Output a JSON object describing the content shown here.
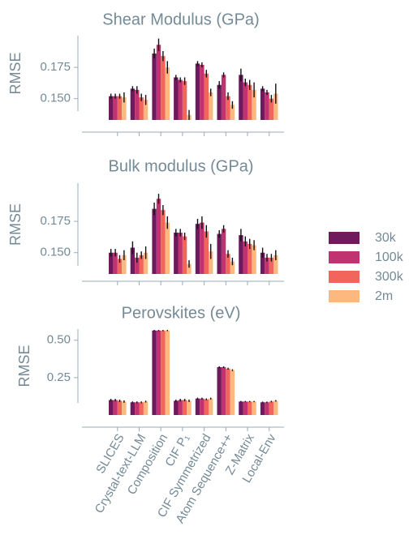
{
  "colors": {
    "text": "#748a96",
    "axis": "#9aabb4",
    "errorbar": "#111111",
    "series": [
      "#6e1a5c",
      "#c13370",
      "#f2655c",
      "#fdb880"
    ]
  },
  "legend": {
    "placement": "right"
  },
  "chart_data": [
    {
      "type": "bar",
      "title": "Shear Modulus (GPa)",
      "ylabel": "RMSE",
      "ylim": [
        0.133,
        0.199
      ],
      "yticks": [
        0.15,
        0.175
      ],
      "ytick_labels": [
        "0.150",
        "0.175"
      ],
      "categories": [
        "SLICES",
        "Crystal-text-LLM",
        "Composition",
        "CIF P1",
        "CIF Symmetrized",
        "Atom Sequence++",
        "Z-Matrix",
        "Local-Env"
      ],
      "series": [
        {
          "name": "30k",
          "values": [
            0.152,
            0.158,
            0.186,
            0.167,
            0.178,
            0.161,
            0.169,
            0.158
          ],
          "errors": [
            0.002,
            0.002,
            0.004,
            0.002,
            0.002,
            0.003,
            0.005,
            0.002
          ]
        },
        {
          "name": "100k",
          "values": [
            0.152,
            0.157,
            0.193,
            0.165,
            0.177,
            0.169,
            0.163,
            0.155
          ],
          "errors": [
            0.002,
            0.003,
            0.005,
            0.002,
            0.002,
            0.002,
            0.003,
            0.002
          ]
        },
        {
          "name": "300k",
          "values": [
            0.152,
            0.151,
            0.184,
            0.164,
            0.17,
            0.152,
            0.161,
            0.15
          ],
          "errors": [
            0.002,
            0.003,
            0.004,
            0.003,
            0.003,
            0.003,
            0.004,
            0.003
          ]
        },
        {
          "name": "2m",
          "values": [
            0.151,
            0.149,
            0.175,
            0.137,
            0.155,
            0.145,
            0.157,
            0.154
          ],
          "errors": [
            0.004,
            0.004,
            0.005,
            0.004,
            0.003,
            0.003,
            0.006,
            0.008
          ]
        }
      ]
    },
    {
      "type": "bar",
      "title": "Bulk modulus (GPa)",
      "ylabel": "RMSE",
      "ylim": [
        0.133,
        0.199
      ],
      "yticks": [
        0.15,
        0.175
      ],
      "ytick_labels": [
        "0.150",
        "0.175"
      ],
      "categories": [
        "SLICES",
        "Crystal-text-LLM",
        "Composition",
        "CIF P1",
        "CIF Symmetrized",
        "Atom Sequence++",
        "Z-Matrix",
        "Local-Env"
      ],
      "series": [
        {
          "name": "30k",
          "values": [
            0.15,
            0.154,
            0.185,
            0.166,
            0.173,
            0.165,
            0.164,
            0.15
          ],
          "errors": [
            0.003,
            0.005,
            0.005,
            0.003,
            0.004,
            0.003,
            0.005,
            0.004
          ]
        },
        {
          "name": "100k",
          "values": [
            0.15,
            0.146,
            0.193,
            0.166,
            0.174,
            0.169,
            0.159,
            0.146
          ],
          "errors": [
            0.003,
            0.004,
            0.004,
            0.003,
            0.005,
            0.003,
            0.004,
            0.003
          ]
        },
        {
          "name": "300k",
          "values": [
            0.145,
            0.148,
            0.184,
            0.163,
            0.167,
            0.149,
            0.157,
            0.146
          ],
          "errors": [
            0.003,
            0.003,
            0.004,
            0.003,
            0.005,
            0.003,
            0.004,
            0.003
          ]
        },
        {
          "name": "2m",
          "values": [
            0.148,
            0.15,
            0.174,
            0.141,
            0.151,
            0.143,
            0.156,
            0.148
          ],
          "errors": [
            0.004,
            0.005,
            0.005,
            0.003,
            0.006,
            0.003,
            0.004,
            0.004
          ]
        }
      ]
    },
    {
      "type": "bar",
      "title": "Perovskites (eV)",
      "ylabel": "RMSE",
      "ylim": [
        0.0,
        0.58
      ],
      "yticks": [
        0.25,
        0.5
      ],
      "ytick_labels": [
        "0.25",
        "0.50"
      ],
      "categories": [
        "SLICES",
        "Crystal-text-LLM",
        "Composition",
        "CIF P₁",
        "CIF Symmetrized",
        "Atom Sequence++",
        "Z-Matrix",
        "Local-Env"
      ],
      "series": [
        {
          "name": "30k",
          "values": [
            0.1,
            0.085,
            0.565,
            0.095,
            0.11,
            0.32,
            0.09,
            0.085
          ],
          "errors": [
            0.008,
            0.006,
            0.004,
            0.008,
            0.006,
            0.006,
            0.004,
            0.005
          ]
        },
        {
          "name": "100k",
          "values": [
            0.1,
            0.085,
            0.565,
            0.1,
            0.11,
            0.32,
            0.09,
            0.085
          ],
          "errors": [
            0.008,
            0.006,
            0.004,
            0.008,
            0.006,
            0.006,
            0.004,
            0.005
          ]
        },
        {
          "name": "300k",
          "values": [
            0.095,
            0.085,
            0.565,
            0.1,
            0.105,
            0.31,
            0.09,
            0.09
          ],
          "errors": [
            0.008,
            0.006,
            0.004,
            0.008,
            0.006,
            0.006,
            0.004,
            0.005
          ]
        },
        {
          "name": "2m",
          "values": [
            0.09,
            0.09,
            0.565,
            0.095,
            0.11,
            0.3,
            0.09,
            0.095
          ],
          "errors": [
            0.008,
            0.006,
            0.004,
            0.008,
            0.006,
            0.006,
            0.004,
            0.005
          ]
        }
      ]
    }
  ]
}
